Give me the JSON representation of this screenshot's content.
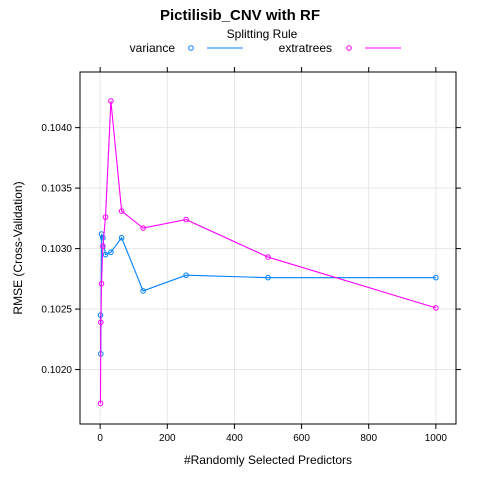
{
  "chart_data": {
    "type": "line",
    "title": "Pictilisib_CNV with RF",
    "legend_title": "Splitting Rule",
    "legend_position": "top",
    "xlabel": "#Randomly Selected Predictors",
    "ylabel": "RMSE (Cross-Validation)",
    "xlim": [
      -60,
      1060
    ],
    "ylim": [
      0.10155,
      0.10446
    ],
    "xticks": [
      0,
      200,
      400,
      600,
      800,
      1000
    ],
    "xtick_labels": [
      "0",
      "200",
      "400",
      "600",
      "800",
      "1000"
    ],
    "yticks": [
      0.102,
      0.1025,
      0.103,
      0.1035,
      0.104
    ],
    "ytick_labels": [
      "0.1020",
      "0.1025",
      "0.1030",
      "0.1035",
      "0.1040"
    ],
    "grid": true,
    "series": [
      {
        "name": "variance",
        "color": "#0080ff",
        "x": [
          1,
          2,
          4,
          8,
          16,
          32,
          64,
          128,
          256,
          500,
          1000
        ],
        "y": [
          0.10245,
          0.10213,
          0.10312,
          0.10309,
          0.10295,
          0.10297,
          0.10309,
          0.10265,
          0.10278,
          0.10276,
          0.10276
        ]
      },
      {
        "name": "extratrees",
        "color": "#ff00ff",
        "x": [
          1,
          2,
          4,
          8,
          16,
          32,
          64,
          128,
          256,
          500,
          1000
        ],
        "y": [
          0.10172,
          0.10239,
          0.10271,
          0.10302,
          0.10326,
          0.10422,
          0.10331,
          0.10317,
          0.10324,
          0.10293,
          0.10251
        ]
      }
    ]
  }
}
